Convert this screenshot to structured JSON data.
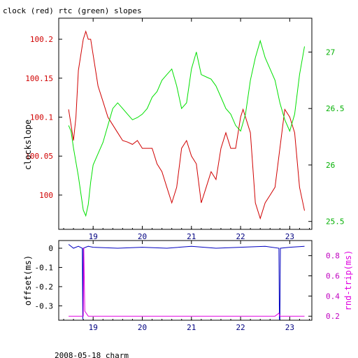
{
  "title": "clock (red) rtc (green) slopes",
  "footer": "2008-05-18 charm",
  "chart_data": [
    {
      "type": "line",
      "panel": "top",
      "ylabel_left": "clockslope",
      "x_ticks": [
        "19",
        "20",
        "21",
        "22",
        "23"
      ],
      "x_tick_values": [
        19,
        20,
        21,
        22,
        23
      ],
      "xlim": [
        18.3,
        23.45
      ],
      "ylim_left": [
        99.956,
        100.227
      ],
      "ylim_right": [
        25.43,
        27.3
      ],
      "left_ticks": [
        "100",
        "100.05",
        "100.1",
        "100.15",
        "100.2"
      ],
      "left_tick_values": [
        100.0,
        100.05,
        100.1,
        100.15,
        100.2
      ],
      "right_ticks": [
        "25.5",
        "26",
        "26.5",
        "27"
      ],
      "right_tick_values": [
        25.5,
        26.0,
        26.5,
        27.0
      ],
      "series": [
        {
          "axis": "left",
          "color": "#d00000",
          "x": [
            18.5,
            18.55,
            18.6,
            18.65,
            18.7,
            18.8,
            18.85,
            18.9,
            18.95,
            19.0,
            19.1,
            19.2,
            19.3,
            19.4,
            19.5,
            19.6,
            19.7,
            19.8,
            19.9,
            20.0,
            20.1,
            20.2,
            20.3,
            20.4,
            20.5,
            20.6,
            20.7,
            20.8,
            20.9,
            21.0,
            21.1,
            21.2,
            21.3,
            21.4,
            21.5,
            21.6,
            21.7,
            21.8,
            21.9,
            22.0,
            22.05,
            22.1,
            22.2,
            22.3,
            22.4,
            22.5,
            22.6,
            22.7,
            22.8,
            22.9,
            23.0,
            23.1,
            23.2,
            23.3
          ],
          "y": [
            100.11,
            100.09,
            100.07,
            100.1,
            100.16,
            100.2,
            100.21,
            100.2,
            100.2,
            100.18,
            100.14,
            100.12,
            100.1,
            100.09,
            100.08,
            100.07,
            100.068,
            100.065,
            100.07,
            100.06,
            100.06,
            100.06,
            100.04,
            100.03,
            100.01,
            99.99,
            100.01,
            100.06,
            100.07,
            100.05,
            100.04,
            99.99,
            100.01,
            100.03,
            100.02,
            100.06,
            100.08,
            100.06,
            100.06,
            100.1,
            100.11,
            100.1,
            100.08,
            99.99,
            99.97,
            99.99,
            100.0,
            100.01,
            100.06,
            100.11,
            100.1,
            100.08,
            100.01,
            99.98
          ]
        },
        {
          "axis": "right",
          "color": "#00e000",
          "x": [
            18.5,
            18.55,
            18.6,
            18.7,
            18.8,
            18.85,
            18.9,
            18.95,
            19.0,
            19.1,
            19.2,
            19.3,
            19.4,
            19.5,
            19.6,
            19.7,
            19.8,
            19.9,
            20.0,
            20.1,
            20.2,
            20.3,
            20.4,
            20.5,
            20.6,
            20.7,
            20.8,
            20.9,
            21.0,
            21.1,
            21.2,
            21.3,
            21.4,
            21.5,
            21.6,
            21.7,
            21.8,
            21.9,
            22.0,
            22.1,
            22.2,
            22.3,
            22.4,
            22.5,
            22.6,
            22.7,
            22.8,
            22.9,
            23.0,
            23.1,
            23.2,
            23.3
          ],
          "y": [
            26.35,
            26.3,
            26.15,
            25.9,
            25.6,
            25.55,
            25.65,
            25.85,
            26.0,
            26.1,
            26.2,
            26.35,
            26.5,
            26.55,
            26.5,
            26.45,
            26.4,
            26.42,
            26.45,
            26.5,
            26.6,
            26.65,
            26.75,
            26.8,
            26.85,
            26.7,
            26.5,
            26.55,
            26.85,
            27.0,
            26.8,
            26.78,
            26.76,
            26.7,
            26.6,
            26.5,
            26.45,
            26.35,
            26.3,
            26.45,
            26.75,
            26.95,
            27.1,
            26.95,
            26.85,
            26.75,
            26.55,
            26.4,
            26.3,
            26.45,
            26.8,
            27.05
          ]
        }
      ]
    },
    {
      "type": "line",
      "panel": "bottom",
      "ylabel_left": "offset(ms)",
      "ylabel_right": "rnd-trip(ms)",
      "x_ticks": [
        "19",
        "20",
        "21",
        "22",
        "23"
      ],
      "x_tick_values": [
        19,
        20,
        21,
        22,
        23
      ],
      "xlim": [
        18.3,
        23.45
      ],
      "ylim_left": [
        -0.375,
        0.04
      ],
      "ylim_right": [
        0.16,
        0.95
      ],
      "left_ticks": [
        "0",
        "-0.1",
        "-0.2",
        "-0.3"
      ],
      "left_tick_values": [
        0,
        -0.1,
        -0.2,
        -0.3
      ],
      "right_ticks": [
        "0.2",
        "0.4",
        "0.6",
        "0.8"
      ],
      "right_tick_values": [
        0.2,
        0.4,
        0.6,
        0.8
      ],
      "series": [
        {
          "axis": "left",
          "color": "#0000c0",
          "x": [
            18.5,
            18.6,
            18.7,
            18.78,
            18.79,
            18.8,
            18.9,
            19.0,
            19.5,
            20.0,
            20.5,
            21.0,
            21.5,
            22.0,
            22.5,
            22.78,
            22.79,
            22.8,
            22.81,
            23.0,
            23.3
          ],
          "y": [
            0.02,
            0.0,
            0.01,
            0.0,
            -0.37,
            0.0,
            0.01,
            0.005,
            0.0,
            0.005,
            0.0,
            0.01,
            0.0,
            0.005,
            0.01,
            0.0,
            -0.37,
            -0.37,
            0.0,
            0.005,
            0.01
          ]
        },
        {
          "axis": "right",
          "color": "#e000e0",
          "x": [
            18.5,
            18.7,
            18.8,
            18.81,
            18.83,
            18.9,
            19.0,
            19.5,
            20.0,
            20.5,
            21.0,
            21.5,
            22.0,
            22.5,
            22.7,
            22.78,
            22.8,
            23.0,
            23.3
          ],
          "y": [
            0.2,
            0.2,
            0.2,
            0.88,
            0.25,
            0.2,
            0.2,
            0.2,
            0.2,
            0.2,
            0.2,
            0.2,
            0.2,
            0.2,
            0.2,
            0.23,
            0.2,
            0.2,
            0.2
          ]
        }
      ]
    }
  ]
}
